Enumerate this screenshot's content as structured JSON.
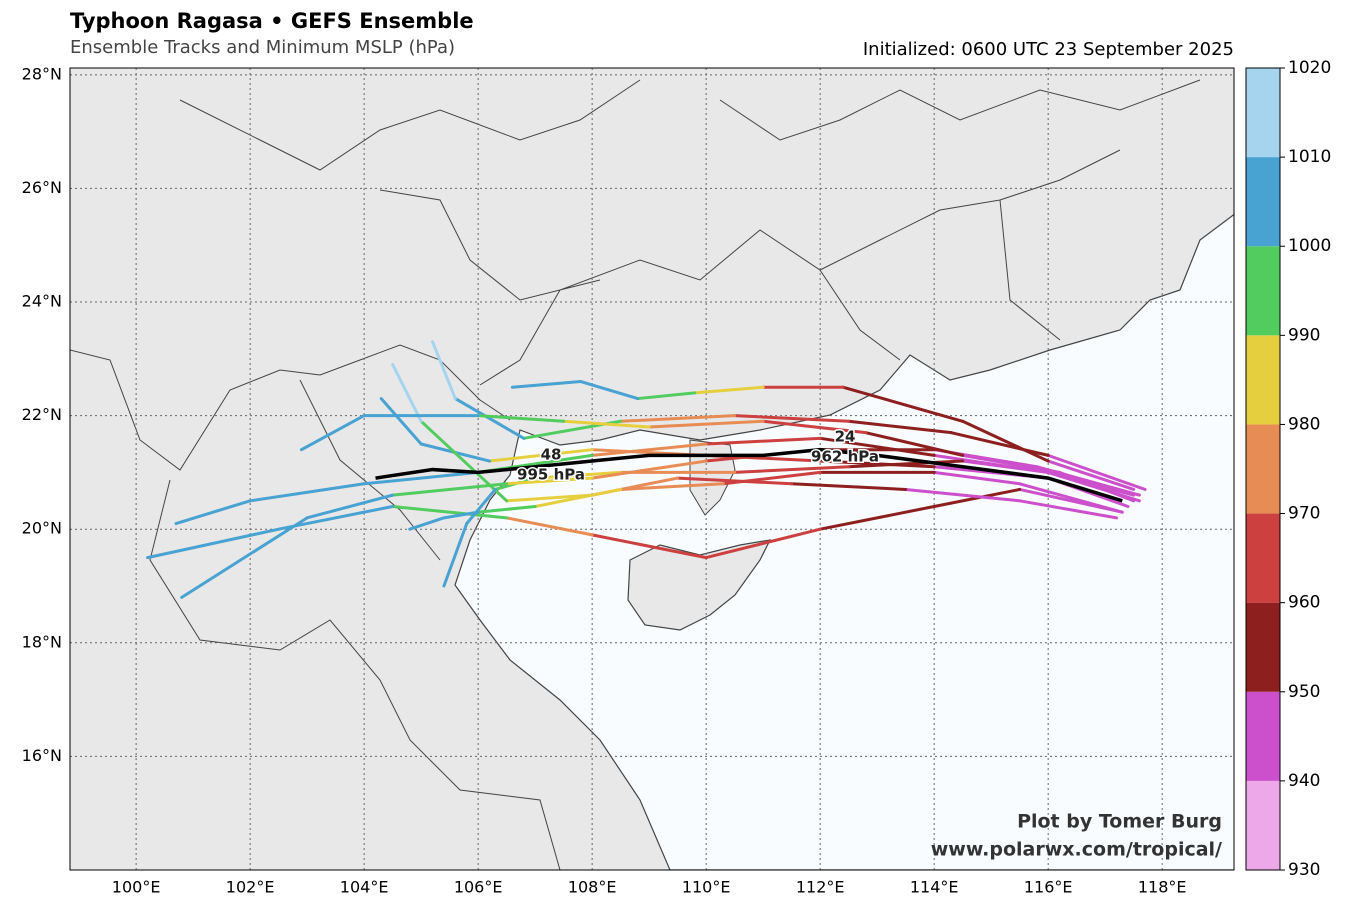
{
  "header": {
    "title": "Typhoon Ragasa • GEFS Ensemble",
    "subtitle": "Ensemble Tracks and Minimum MSLP (hPa)",
    "initialized": "Initialized: 0600 UTC 23 September 2025"
  },
  "map": {
    "xlim": [
      98.84,
      119.26
    ],
    "ylim": [
      14.0,
      28.12
    ],
    "xticks": [
      {
        "value": 100,
        "label": "100°E"
      },
      {
        "value": 102,
        "label": "102°E"
      },
      {
        "value": 104,
        "label": "104°E"
      },
      {
        "value": 106,
        "label": "106°E"
      },
      {
        "value": 108,
        "label": "108°E"
      },
      {
        "value": 110,
        "label": "110°E"
      },
      {
        "value": 112,
        "label": "112°E"
      },
      {
        "value": 114,
        "label": "114°E"
      },
      {
        "value": 116,
        "label": "116°E"
      },
      {
        "value": 118,
        "label": "118°E"
      }
    ],
    "yticks": [
      {
        "value": 16,
        "label": "16°N"
      },
      {
        "value": 18,
        "label": "18°N"
      },
      {
        "value": 20,
        "label": "20°N"
      },
      {
        "value": 22,
        "label": "22°N"
      },
      {
        "value": 24,
        "label": "24°N"
      },
      {
        "value": 26,
        "label": "26°N"
      },
      {
        "value": 28,
        "label": "28°N"
      }
    ],
    "grid": true
  },
  "colorbar": {
    "levels": [
      930,
      940,
      950,
      960,
      970,
      980,
      990,
      1000,
      1010,
      1020
    ],
    "colors": [
      "#eca8e8",
      "#cc50cc",
      "#8e1f1f",
      "#cd4040",
      "#e88c55",
      "#e6cf3f",
      "#52cc5f",
      "#48a2d2",
      "#a6d4ee"
    ]
  },
  "tracks": [
    {
      "lon": [
        117.5,
        116,
        114.5,
        112.4,
        111,
        109.8,
        108.8,
        107.8,
        106.6
      ],
      "lat": [
        20.7,
        21.2,
        21.9,
        22.5,
        22.5,
        22.4,
        22.3,
        22.6,
        22.5
      ],
      "mslp": [
        945,
        950,
        958,
        965,
        985,
        995,
        1005,
        1006,
        1007
      ]
    },
    {
      "lon": [
        117.6,
        116,
        114,
        112,
        110,
        108,
        106,
        104,
        102,
        100.7
      ],
      "lat": [
        20.5,
        21.0,
        21.3,
        21.6,
        21.5,
        21.3,
        21.0,
        20.8,
        20.5,
        20.1
      ],
      "mslp": [
        942,
        948,
        955,
        962,
        975,
        990,
        1002,
        1006,
        1007,
        1008
      ]
    },
    {
      "lon": [
        117.3,
        115.5,
        114,
        112,
        110,
        108,
        106.5,
        104.5,
        102.5,
        100.2
      ],
      "lat": [
        20.3,
        20.7,
        20.4,
        20.0,
        19.5,
        19.9,
        20.2,
        20.4,
        20.0,
        19.5
      ],
      "mslp": [
        945,
        950,
        955,
        962,
        968,
        978,
        990,
        1004,
        1006,
        1007
      ]
    },
    {
      "lon": [
        117.4,
        116,
        114,
        112,
        110,
        108,
        106.2,
        105,
        104.3
      ],
      "lat": [
        20.4,
        20.9,
        21.1,
        21.2,
        21.3,
        21.4,
        21.2,
        21.5,
        22.3
      ],
      "mslp": [
        943,
        948,
        956,
        965,
        978,
        988,
        1000,
        1007,
        1010
      ]
    },
    {
      "lon": [
        117.2,
        115.5,
        113.5,
        111.5,
        109.5,
        108,
        106.5,
        105,
        104.5
      ],
      "lat": [
        20.2,
        20.5,
        20.7,
        20.8,
        20.9,
        20.6,
        20.5,
        21.9,
        22.9
      ],
      "mslp": [
        940,
        946,
        953,
        962,
        975,
        985,
        996,
        1010,
        1012
      ]
    },
    {
      "lon": [
        117.7,
        116,
        114.3,
        112.5,
        110.5,
        108.5,
        106.8,
        105.6,
        105.2
      ],
      "lat": [
        20.7,
        21.3,
        21.7,
        21.9,
        22.0,
        21.9,
        21.6,
        22.3,
        23.3
      ],
      "mslp": [
        946,
        951,
        957,
        964,
        978,
        992,
        1003,
        1010,
        1013
      ]
    },
    {
      "lon": [
        117.3,
        115.5,
        114,
        112,
        110.3,
        108.5,
        107,
        106,
        105.4,
        104.8
      ],
      "lat": [
        20.3,
        20.8,
        21.0,
        21.0,
        20.8,
        20.7,
        20.4,
        20.3,
        20.2,
        20.0
      ],
      "mslp": [
        941,
        947,
        954,
        963,
        974,
        983,
        995,
        1003,
        1006,
        1008
      ]
    },
    {
      "lon": [
        117.5,
        116,
        114.5,
        112.5,
        110.5,
        108.5,
        107,
        106.3,
        105.8,
        105.4
      ],
      "lat": [
        20.6,
        21.0,
        21.2,
        21.1,
        21.0,
        21.0,
        20.9,
        20.7,
        20.1,
        19.0
      ],
      "mslp": [
        944,
        949,
        956,
        964,
        976,
        986,
        995,
        1002,
        1006,
        1008
      ]
    },
    {
      "lon": [
        117.6,
        115.8,
        114,
        112,
        110,
        108,
        106.5,
        104.5,
        103,
        100.8
      ],
      "lat": [
        20.6,
        21.1,
        21.4,
        21.4,
        21.2,
        20.9,
        20.8,
        20.6,
        20.2,
        18.8
      ],
      "mslp": [
        944,
        949,
        956,
        966,
        978,
        988,
        998,
        1005,
        1007,
        1008
      ]
    },
    {
      "lon": [
        117.5,
        116.2,
        114.5,
        112.8,
        111,
        109,
        107.5,
        106,
        104,
        102.9
      ],
      "lat": [
        20.5,
        21.0,
        21.3,
        21.7,
        21.9,
        21.8,
        21.9,
        22.0,
        22.0,
        21.4
      ],
      "mslp": [
        943,
        948,
        955,
        962,
        972,
        984,
        994,
        1004,
        1008,
        1009
      ]
    }
  ],
  "mean_track": {
    "lon": [
      117.3,
      116,
      114.5,
      113,
      112,
      111,
      110,
      109,
      108,
      107,
      106,
      105.2,
      104.2
    ],
    "lat": [
      20.5,
      20.9,
      21.1,
      21.3,
      21.4,
      21.3,
      21.3,
      21.3,
      21.2,
      21.1,
      21.0,
      21.05,
      20.9
    ]
  },
  "annotations": [
    {
      "hour": "24",
      "mslp": "962 hPa"
    },
    {
      "hour": "48",
      "mslp": "995 hPa"
    }
  ],
  "credit": {
    "line1": "Plot by Tomer Burg",
    "line2": "www.polarwx.com/tropical/"
  }
}
